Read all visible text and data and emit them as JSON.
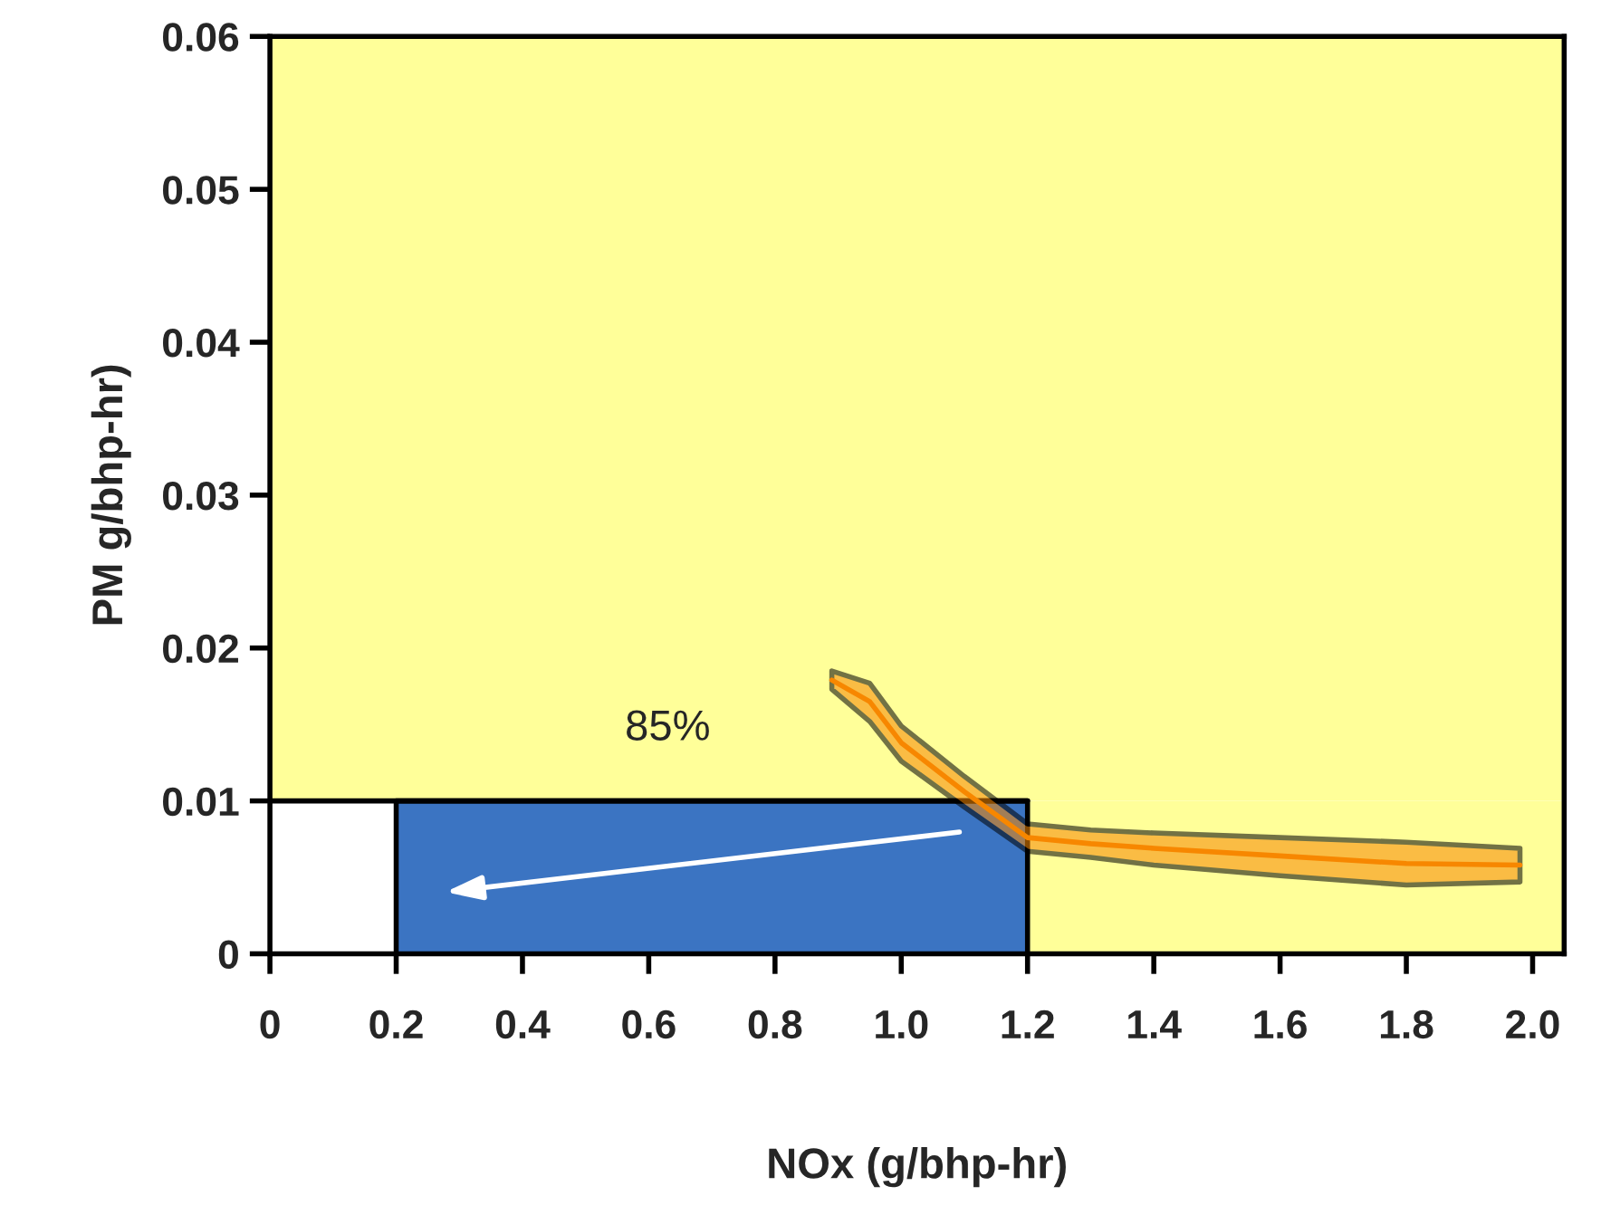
{
  "chart_data": {
    "type": "line",
    "xlabel": "NOx (g/bhp-hr)",
    "ylabel": "PM g/bhp-hr)",
    "xlim": [
      0,
      2.05
    ],
    "xticks": [
      0,
      0.2,
      0.4,
      0.6,
      0.8,
      {
        "value": 1.0,
        "label": "1.0"
      },
      1.2,
      1.4,
      1.6,
      1.8,
      {
        "value": 2.0,
        "label": "2.0"
      }
    ],
    "ylim": [
      0,
      0.06
    ],
    "yticks": [
      0,
      0.01,
      0.02,
      0.03,
      0.04,
      0.05,
      0.06
    ],
    "grid": false,
    "legend": false,
    "bands": [
      {
        "axis": "x",
        "from": 0.2,
        "to": 1.2,
        "color": "#3b74c2"
      },
      {
        "axis": "x",
        "from": 1.2,
        "to": 2.05,
        "color": "#ffff99"
      },
      {
        "axis": "y",
        "from": 0.01,
        "to": 0.06,
        "color": "#ffff99"
      }
    ],
    "ref_lines": [
      {
        "axis": "y",
        "value": 0.01,
        "color": "#000000"
      }
    ],
    "series": [
      {
        "color": "#f78700",
        "x": [
          0.89,
          0.95,
          1.0,
          1.1,
          1.2,
          1.3,
          1.4,
          1.6,
          1.8,
          1.98
        ],
        "values": [
          0.0179,
          0.0165,
          0.0138,
          0.0106,
          0.0076,
          0.0072,
          0.0069,
          0.0064,
          0.0059,
          0.0058
        ],
        "lower": [
          0.0173,
          0.0152,
          0.0126,
          0.0096,
          0.0067,
          0.0063,
          0.0058,
          0.0051,
          0.0045,
          0.0047
        ],
        "upper": [
          0.0185,
          0.0177,
          0.0149,
          0.0116,
          0.0085,
          0.0081,
          0.0079,
          0.0076,
          0.0073,
          0.0069
        ]
      }
    ],
    "annotations": [
      "85%"
    ]
  }
}
